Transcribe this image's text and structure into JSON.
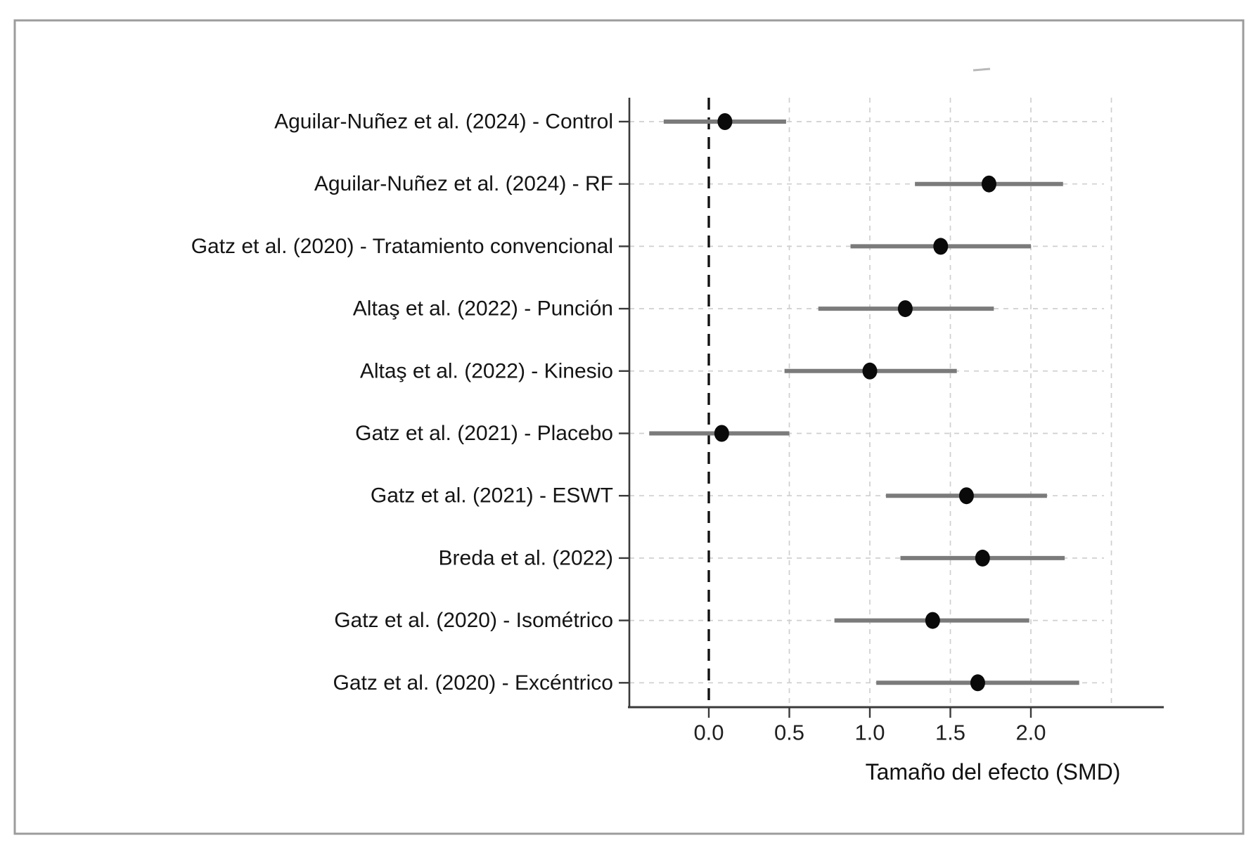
{
  "figure": {
    "background": "#ffffff",
    "border_color": "#9c9c9c"
  },
  "chart_data": {
    "type": "scatter",
    "subtype": "forest-plot",
    "title": "",
    "xlabel": "Tamaño del efecto (SMD)",
    "ylabel": "",
    "xlim": [
      -0.49,
      2.81
    ],
    "grid": true,
    "reference_line_x": 0.0,
    "x_ticks": [
      {
        "value": 0.0,
        "label": "0.0"
      },
      {
        "value": 0.5,
        "label": "0.5"
      },
      {
        "value": 1.0,
        "label": "1.0"
      },
      {
        "value": 1.5,
        "label": "1.5"
      },
      {
        "value": 2.0,
        "label": "2.0"
      }
    ],
    "x_gridlines": [
      0.5,
      1.0,
      1.5,
      2.0,
      2.5
    ],
    "studies": [
      {
        "label": "Aguilar-Nuñez et al. (2024) - Control",
        "mean": 0.1,
        "ci_low": -0.28,
        "ci_high": 0.48
      },
      {
        "label": "Aguilar-Nuñez et al. (2024) - RF",
        "mean": 1.74,
        "ci_low": 1.28,
        "ci_high": 2.2
      },
      {
        "label": "Gatz et al. (2020) - Tratamiento convencional",
        "mean": 1.44,
        "ci_low": 0.88,
        "ci_high": 2.0
      },
      {
        "label": "Altaş et al. (2022) - Punción",
        "mean": 1.22,
        "ci_low": 0.68,
        "ci_high": 1.77
      },
      {
        "label": "Altaş et al. (2022) - Kinesio",
        "mean": 1.0,
        "ci_low": 0.47,
        "ci_high": 1.54
      },
      {
        "label": "Gatz et al. (2021) - Placebo",
        "mean": 0.08,
        "ci_low": -0.37,
        "ci_high": 0.5
      },
      {
        "label": "Gatz et al. (2021) - ESWT",
        "mean": 1.6,
        "ci_low": 1.1,
        "ci_high": 2.1
      },
      {
        "label": "Breda et al. (2022)",
        "mean": 1.7,
        "ci_low": 1.19,
        "ci_high": 2.21
      },
      {
        "label": "Gatz et al. (2020) - Isométrico",
        "mean": 1.39,
        "ci_low": 0.78,
        "ci_high": 1.99
      },
      {
        "label": "Gatz et al. (2020) - Excéntrico",
        "mean": 1.67,
        "ci_low": 1.04,
        "ci_high": 2.3
      }
    ],
    "colors": {
      "ci_line": "#7b7b7b",
      "point": "#0a0a0a",
      "gridline": "#cfcfcf",
      "reference_line": "#111111",
      "spine": "#3a3a3a",
      "tick_label": "#1f1f1f",
      "study_label": "#141414",
      "axis_title": "#111111"
    }
  }
}
